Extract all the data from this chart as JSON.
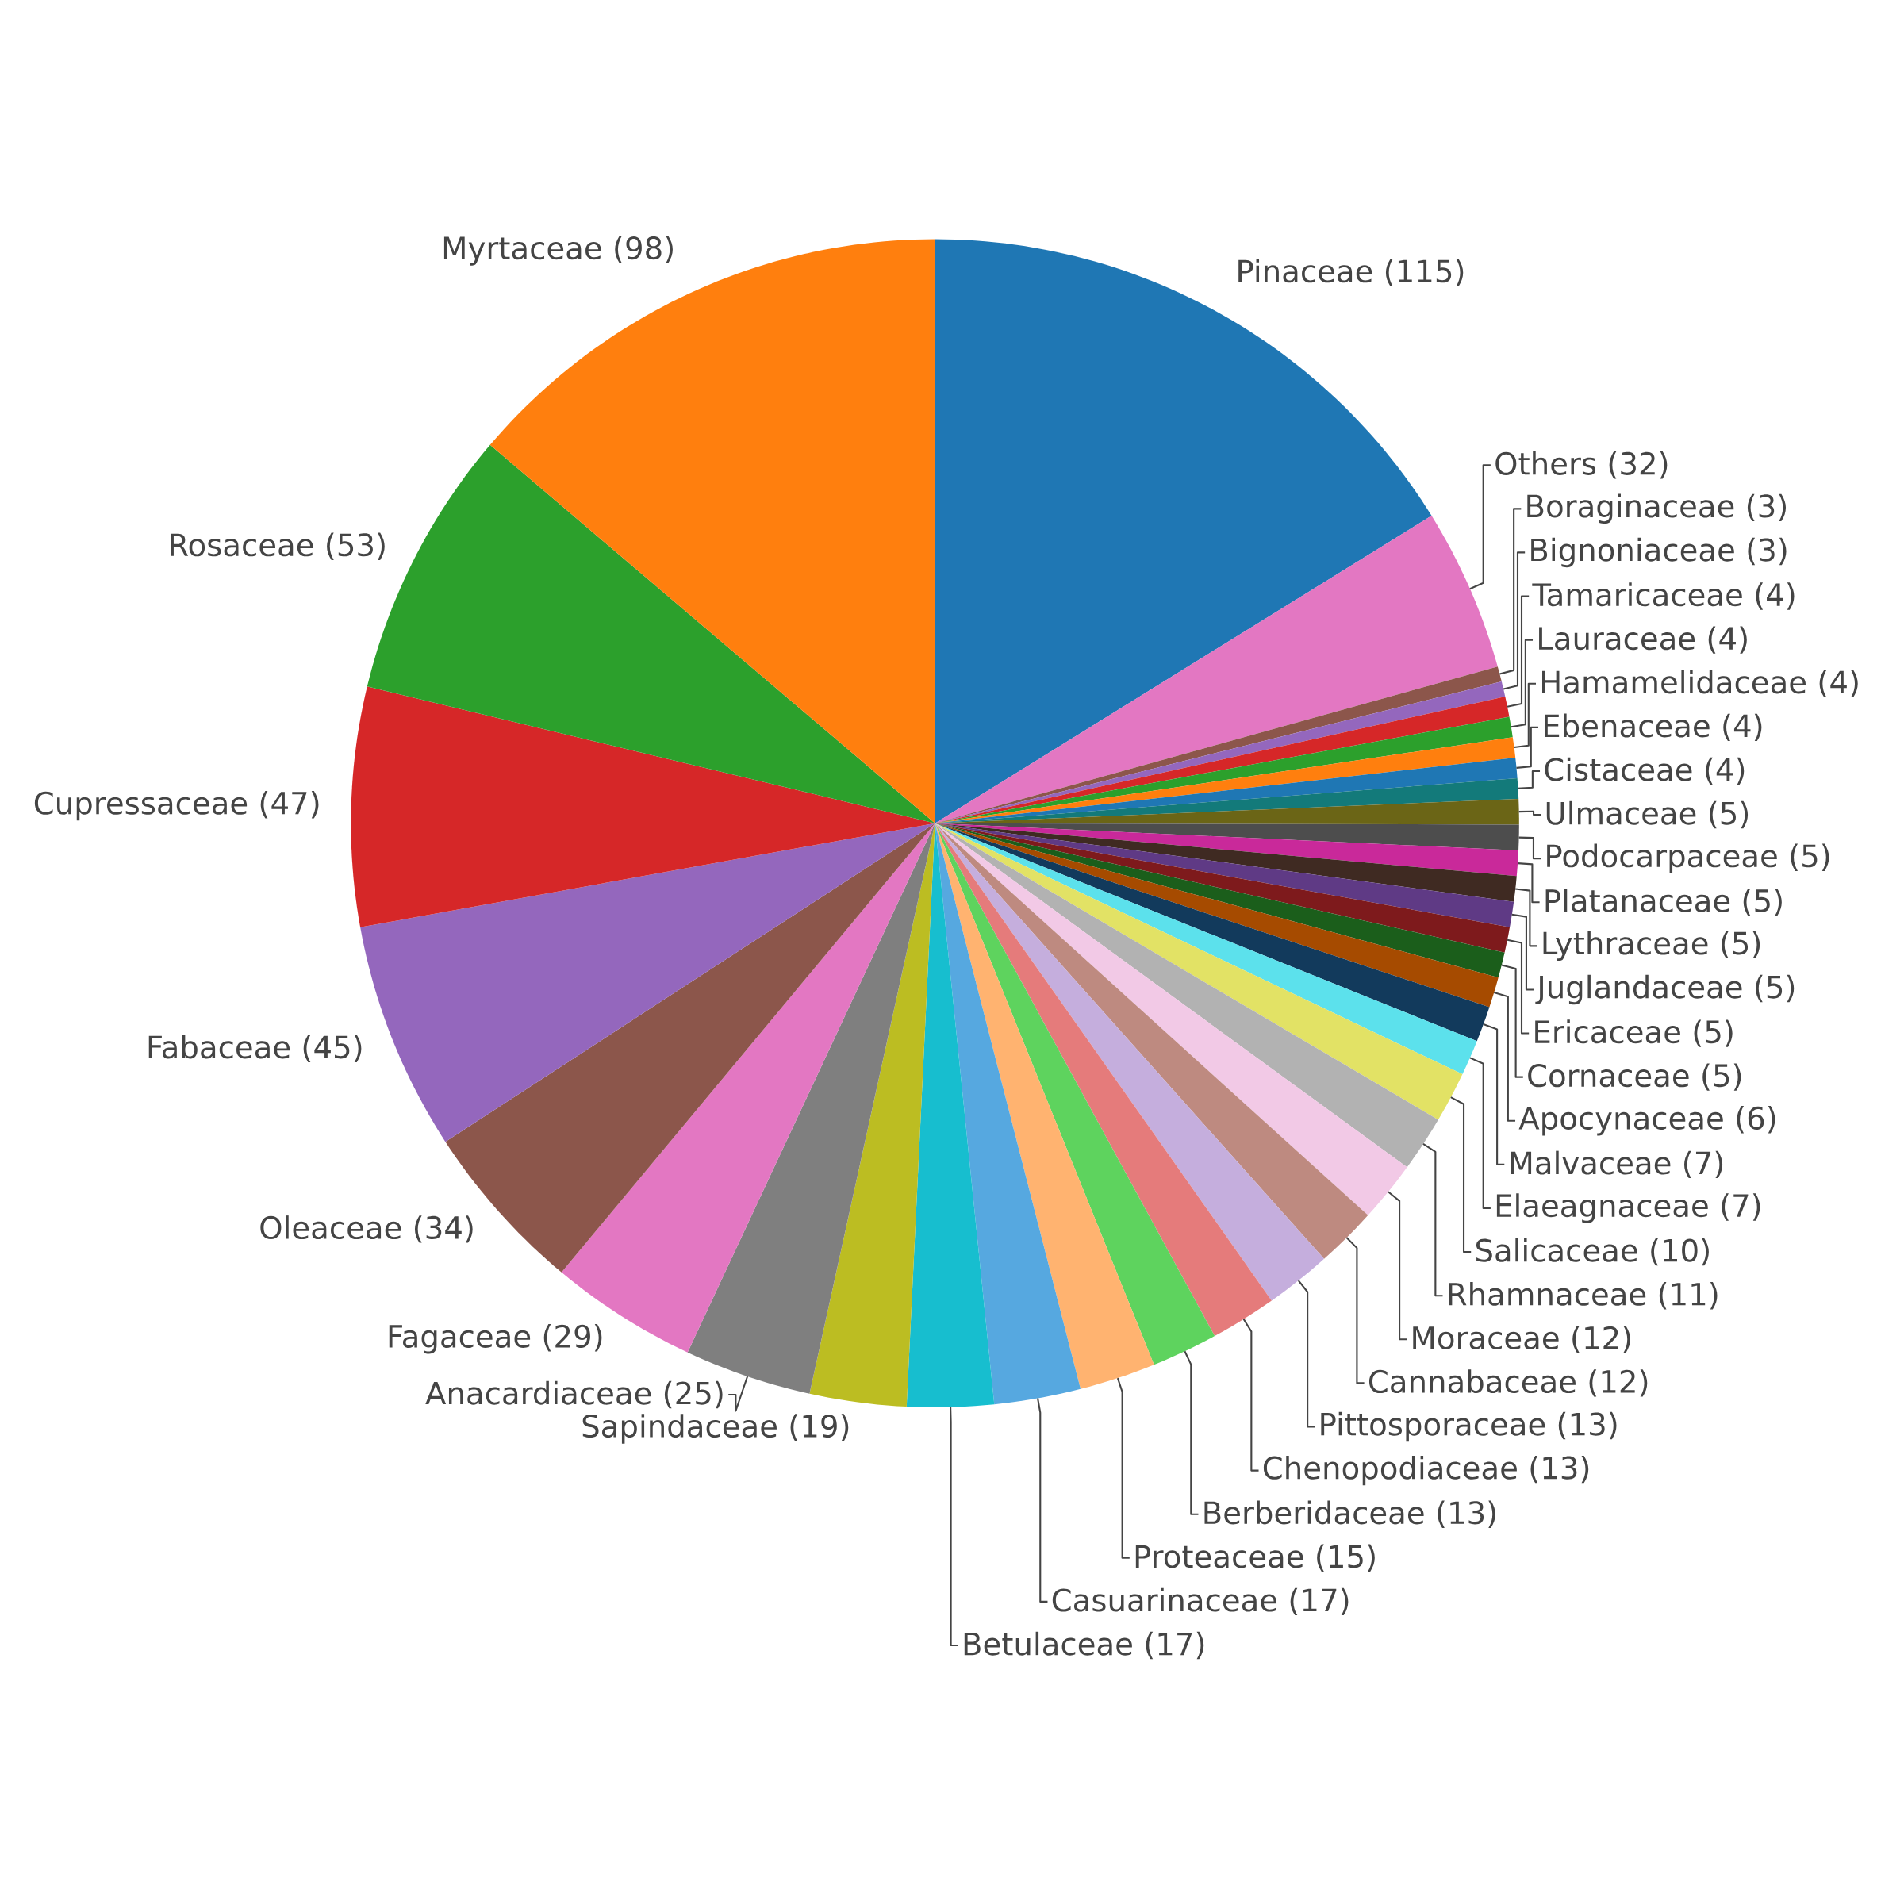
{
  "chart_data": {
    "type": "pie",
    "value_labels": [
      "(115)",
      "(32)",
      "(3)",
      "(3)",
      "(4)",
      "(4)",
      "(4)",
      "(4)",
      "(4)",
      "(5)",
      "(5)",
      "(5)",
      "(5)",
      "(5)",
      "(5)",
      "(5)",
      "(6)",
      "(7)",
      "(7)",
      "(10)",
      "(11)",
      "(12)",
      "(12)",
      "(13)",
      "(13)",
      "(13)",
      "(15)",
      "(17)",
      "(17)",
      "(19)",
      "(25)",
      "(29)",
      "(34)",
      "(45)",
      "(47)",
      "(53)",
      "(98)"
    ],
    "categories": [
      "Pinaceae",
      "Others",
      "Boraginaceae",
      "Bignoniaceae",
      "Tamaricaceae",
      "Lauraceae",
      "Hamamelidaceae",
      "Ebenaceae",
      "Cistaceae",
      "Ulmaceae",
      "Podocarpaceae",
      "Platanaceae",
      "Lythraceae",
      "Juglandaceae",
      "Ericaceae",
      "Cornaceae",
      "Apocynaceae",
      "Malvaceae",
      "Elaeagnaceae",
      "Salicaceae",
      "Rhamnaceae",
      "Moraceae",
      "Cannabaceae",
      "Pittosporaceae",
      "Chenopodiaceae",
      "Berberidaceae",
      "Proteaceae",
      "Casuarinaceae",
      "Betulaceae",
      "Sapindaceae",
      "Anacardiaceae",
      "Fagaceae",
      "Oleaceae",
      "Fabaceae",
      "Cupressaceae",
      "Rosaceae",
      "Myrtaceae"
    ],
    "values": [
      115,
      32,
      3,
      3,
      4,
      4,
      4,
      4,
      4,
      5,
      5,
      5,
      5,
      5,
      5,
      5,
      6,
      7,
      7,
      10,
      11,
      12,
      12,
      13,
      13,
      13,
      15,
      17,
      17,
      19,
      25,
      29,
      34,
      45,
      47,
      53,
      98
    ],
    "colors": [
      "#1f77b4",
      "#e377c2",
      "#8c564b",
      "#9467bd",
      "#d62728",
      "#2ca02c",
      "#ff7f0e",
      "#1f77b4",
      "#137a7a",
      "#6b6516",
      "#4d4d4d",
      "#c9299a",
      "#3f2a22",
      "#5f3a85",
      "#7e1a1c",
      "#1b5e1b",
      "#a64b00",
      "#123a5c",
      "#5ce1ec",
      "#e2e265",
      "#b2b2b2",
      "#f2c9e6",
      "#be8a80",
      "#c5aedd",
      "#e57b7b",
      "#5ed35e",
      "#ffb370",
      "#56a8e0",
      "#17becf",
      "#bcbd22",
      "#7f7f7f",
      "#e377c2",
      "#8c564b",
      "#9467bd",
      "#d62728",
      "#2ca02c",
      "#ff7f0e"
    ]
  }
}
